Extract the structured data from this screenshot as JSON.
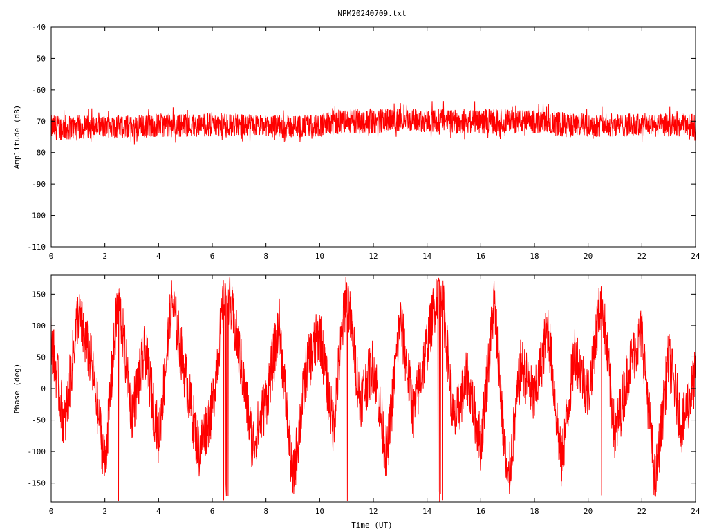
{
  "chart_data": [
    {
      "type": "line",
      "title": "NPM20240709.txt",
      "xlabel": "",
      "ylabel": "Amplitude (dB)",
      "xlim": [
        0,
        24
      ],
      "ylim": [
        -110,
        -40
      ],
      "x_ticks": [
        "0",
        "2",
        "4",
        "6",
        "8",
        "10",
        "12",
        "14",
        "16",
        "18",
        "20",
        "22",
        "24"
      ],
      "y_ticks": [
        "-40",
        "-50",
        "-60",
        "-70",
        "-80",
        "-90",
        "-100",
        "-110"
      ],
      "grid": false,
      "color": "#ff0000",
      "series": [
        {
          "x": [
            0,
            1,
            2,
            3,
            4,
            5,
            6,
            7,
            8,
            9,
            10,
            10.5,
            11,
            12,
            13,
            14,
            15,
            16,
            17,
            18,
            19,
            20,
            21,
            22,
            23,
            24
          ],
          "mean": [
            -72,
            -72,
            -72,
            -72,
            -71.5,
            -71.5,
            -71.5,
            -71.5,
            -72,
            -72,
            -71,
            -70,
            -70,
            -70,
            -70,
            -70,
            -70,
            -70,
            -70,
            -70.5,
            -71,
            -71.5,
            -71.5,
            -71.5,
            -71.5,
            -71.5
          ],
          "band_low": [
            -76,
            -76,
            -75.5,
            -75.5,
            -75,
            -75,
            -75,
            -75,
            -75,
            -75.5,
            -75,
            -74.5,
            -74,
            -74,
            -73.5,
            -73.5,
            -74,
            -74,
            -74,
            -74,
            -75,
            -75,
            -75,
            -75,
            -75,
            -75
          ],
          "band_high": [
            -68,
            -68,
            -68,
            -68,
            -67.5,
            -67.5,
            -67.5,
            -67.5,
            -68,
            -68,
            -67.5,
            -66.5,
            -66,
            -66,
            -66,
            -66,
            -66,
            -66,
            -66,
            -66.5,
            -67,
            -67.5,
            -67.5,
            -67.5,
            -67.5,
            -67.5
          ]
        }
      ]
    },
    {
      "type": "line",
      "title": "",
      "xlabel": "Time (UT)",
      "ylabel": "Phase (deg)",
      "xlim": [
        0,
        24
      ],
      "ylim": [
        -180,
        180
      ],
      "x_ticks": [
        "0",
        "2",
        "4",
        "6",
        "8",
        "10",
        "12",
        "14",
        "16",
        "18",
        "20",
        "22",
        "24"
      ],
      "y_ticks": [
        "150",
        "100",
        "50",
        "0",
        "-50",
        "-100",
        "-150"
      ],
      "grid": false,
      "color": "#ff0000",
      "series": [
        {
          "wrapped": true,
          "x": [
            0,
            0.5,
            1,
            1.5,
            2,
            2.5,
            3,
            3.5,
            4,
            4.5,
            5,
            5.5,
            6,
            6.5,
            7,
            7.5,
            8,
            8.5,
            9,
            9.5,
            10,
            10.5,
            11,
            11.5,
            12,
            12.5,
            13,
            13.5,
            14,
            14.5,
            15,
            15.5,
            16,
            16.5,
            17,
            17.5,
            18,
            18.5,
            19,
            19.5,
            20,
            20.5,
            21,
            21.5,
            22,
            22.5,
            23,
            23.5,
            24
          ],
          "values": [
            80,
            -60,
            120,
            40,
            -120,
            150,
            -40,
            60,
            -80,
            140,
            20,
            -100,
            -30,
            170,
            60,
            -90,
            -20,
            100,
            -150,
            30,
            90,
            -60,
            160,
            -20,
            40,
            -110,
            110,
            -40,
            70,
            180,
            -60,
            20,
            -90,
            140,
            -160,
            40,
            -20,
            100,
            -120,
            60,
            -10,
            150,
            -80,
            30,
            90,
            -150,
            50,
            -60,
            20
          ]
        }
      ]
    }
  ]
}
